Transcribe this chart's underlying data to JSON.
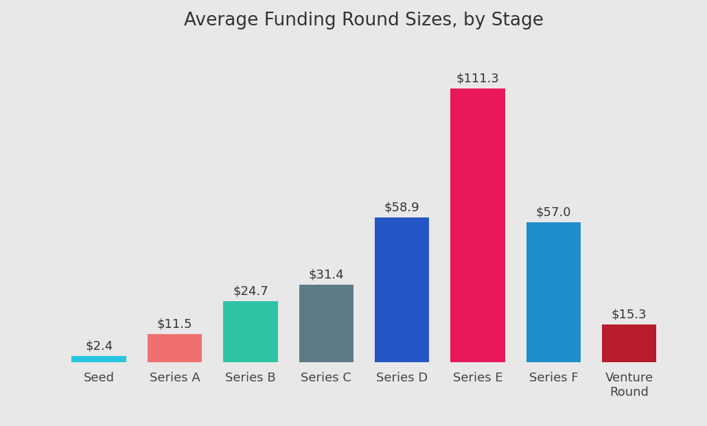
{
  "title": "Average Funding Round Sizes, by Stage",
  "categories": [
    "Seed",
    "Series A",
    "Series B",
    "Series C",
    "Series D",
    "Series E",
    "Series F",
    "Venture\nRound"
  ],
  "values": [
    2.4,
    11.5,
    24.7,
    31.4,
    58.9,
    111.3,
    57.0,
    15.3
  ],
  "labels": [
    "$2.4",
    "$11.5",
    "$24.7",
    "$31.4",
    "$58.9",
    "$111.3",
    "$57.0",
    "$15.3"
  ],
  "bar_colors": [
    "#29C4E0",
    "#F07070",
    "#2EC4A5",
    "#5F7A87",
    "#2457C5",
    "#E8185A",
    "#1E8ECC",
    "#B71C2B"
  ],
  "background_color": "#E8E8E8",
  "title_fontsize": 19,
  "label_fontsize": 13,
  "tick_fontsize": 13,
  "ylim": [
    0,
    130
  ],
  "bar_width": 0.72
}
